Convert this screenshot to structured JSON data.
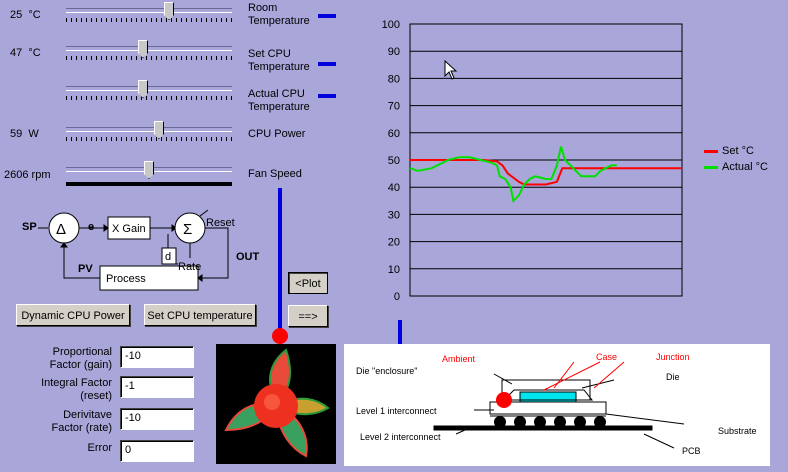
{
  "sliders": [
    {
      "id": "room",
      "value": "25",
      "unit": "°C",
      "label": "Room\nTemperature",
      "level": 0.62
    },
    {
      "id": "setcpu",
      "value": "47",
      "unit": "°C",
      "label": "Set CPU\nTemperature",
      "level": 0.45
    },
    {
      "id": "actualcpu",
      "value": "",
      "unit": "",
      "label": "Actual CPU\nTemperature",
      "level": 0.45
    },
    {
      "id": "power",
      "value": "59",
      "unit": "W",
      "label": "CPU Power",
      "level": 0.55
    },
    {
      "id": "fan",
      "value": "2606",
      "unit": "rpm",
      "label": "Fan Speed",
      "level": 0.47
    }
  ],
  "block_diagram": {
    "sp": "SP",
    "e": "e",
    "gain": "X Gain",
    "reset": "Reset",
    "d": "d",
    "rate": "Rate",
    "pv": "PV",
    "process": "Process",
    "out": "OUT",
    "delta": "Δ",
    "sigma": "Σ"
  },
  "buttons": {
    "plot": "<Plot",
    "arrow": "==>",
    "dynamic": "Dynamic CPU Power",
    "settemp": "Set CPU temperature"
  },
  "fields": [
    {
      "label": "Proportional\nFactor (gain)",
      "value": "-10"
    },
    {
      "label": "Integral Factor\n(reset)",
      "value": "-1"
    },
    {
      "label": "Derivitave\nFactor (rate)",
      "value": "-10"
    },
    {
      "label": "Error",
      "value": "0"
    }
  ],
  "chart_data": {
    "type": "line",
    "ylim": [
      0,
      100
    ],
    "yticks": [
      "0",
      "10",
      "20",
      "30",
      "40",
      "50",
      "60",
      "70",
      "80",
      "90",
      "100"
    ],
    "series": [
      {
        "name": "Set °C",
        "color": "#ff0000",
        "points": [
          [
            0,
            50
          ],
          [
            0.27,
            50
          ],
          [
            0.32,
            49.5
          ],
          [
            0.34,
            48
          ],
          [
            0.36,
            45
          ],
          [
            0.4,
            42
          ],
          [
            0.42,
            41
          ],
          [
            0.5,
            41
          ],
          [
            0.54,
            42
          ],
          [
            0.56,
            47
          ],
          [
            0.58,
            47
          ],
          [
            1,
            47
          ]
        ]
      },
      {
        "name": "Actual °C",
        "color": "#00e000",
        "points": [
          [
            0,
            47
          ],
          [
            0.03,
            46
          ],
          [
            0.08,
            47
          ],
          [
            0.14,
            50
          ],
          [
            0.18,
            51
          ],
          [
            0.22,
            51
          ],
          [
            0.26,
            50
          ],
          [
            0.3,
            49
          ],
          [
            0.32,
            48
          ],
          [
            0.33,
            44
          ],
          [
            0.35,
            43
          ],
          [
            0.37,
            40
          ],
          [
            0.38,
            35
          ],
          [
            0.4,
            37
          ],
          [
            0.42,
            41
          ],
          [
            0.44,
            43
          ],
          [
            0.46,
            44
          ],
          [
            0.5,
            43
          ],
          [
            0.52,
            43
          ],
          [
            0.54,
            48
          ],
          [
            0.555,
            55
          ],
          [
            0.57,
            50
          ],
          [
            0.59,
            48
          ],
          [
            0.61,
            46
          ],
          [
            0.63,
            44
          ],
          [
            0.66,
            44
          ],
          [
            0.68,
            44
          ],
          [
            0.7,
            46
          ],
          [
            0.72,
            47
          ],
          [
            0.74,
            48
          ],
          [
            0.76,
            48
          ]
        ]
      }
    ]
  },
  "thermal": {
    "ambient": "Ambient",
    "case": "Case",
    "junction": "Junction",
    "die_enclosure": "Die \"enclosure\"",
    "die": "Die",
    "level1": "Level 1 interconnect",
    "level2": "Level 2 interconnect",
    "substrate": "Substrate",
    "pcb": "PCB"
  },
  "colors": {
    "bg": "#a9a6da",
    "link": "#0000e0",
    "marker": "#ff0000"
  }
}
